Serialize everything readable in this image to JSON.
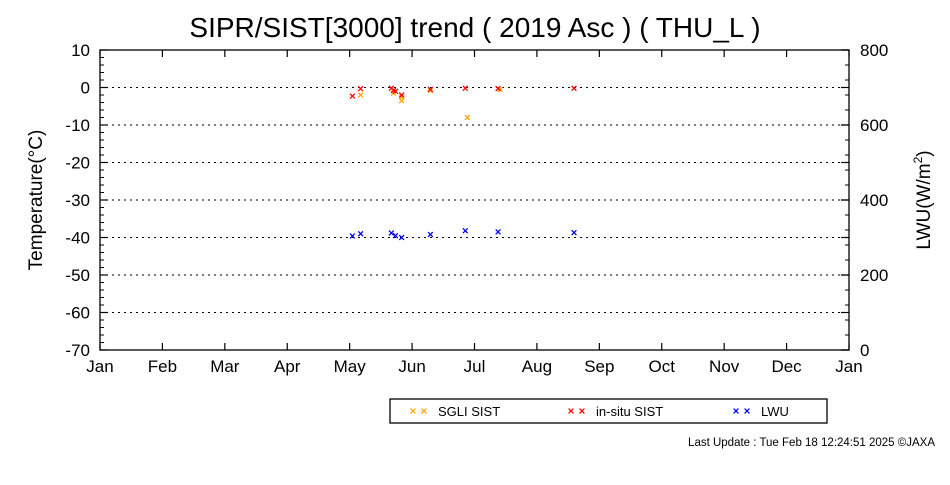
{
  "chart_data": {
    "type": "scatter",
    "title": "SIPR/SIST[3000] trend ( 2019 Asc ) ( THU_L )",
    "ylabel": "Temperature(°C)",
    "y2label_main": "LWU(W/m",
    "y2label_sup": "2",
    "y2label_end": ")",
    "ylim": [
      -70,
      10
    ],
    "yticks": [
      "10",
      "0",
      "-10",
      "-20",
      "-30",
      "-40",
      "-50",
      "-60",
      "-70"
    ],
    "y2lim": [
      0,
      800
    ],
    "y2ticks": [
      "800",
      "600",
      "400",
      "200",
      "0"
    ],
    "xlim": [
      "2019-01-01",
      "2020-01-01"
    ],
    "xticks": [
      "Jan",
      "Feb",
      "Mar",
      "Apr",
      "May",
      "Jun",
      "Jul",
      "Aug",
      "Sep",
      "Oct",
      "Nov",
      "Dec",
      "Jan"
    ],
    "grid": "dotted horizontal",
    "legend_position": "bottom-right",
    "series": [
      {
        "name": "SGLI SIST",
        "color": "#ffa500",
        "axis": "left",
        "marker": "x",
        "points": [
          [
            "2019-05-08",
            -2.0
          ],
          [
            "2019-05-24",
            -1.5
          ],
          [
            "2019-05-28",
            -2.5
          ],
          [
            "2019-05-28",
            -3.5
          ],
          [
            "2019-06-11",
            -0.8
          ],
          [
            "2019-06-29",
            -8.0
          ],
          [
            "2019-07-15",
            -0.5
          ]
        ]
      },
      {
        "name": "in-situ SIST",
        "color": "#ff0000",
        "axis": "left",
        "marker": "x",
        "points": [
          [
            "2019-05-04",
            -2.3
          ],
          [
            "2019-05-08",
            -0.3
          ],
          [
            "2019-05-23",
            -0.2
          ],
          [
            "2019-05-24",
            -0.8
          ],
          [
            "2019-05-25",
            -1.0
          ],
          [
            "2019-05-28",
            -2.0
          ],
          [
            "2019-06-11",
            -0.5
          ],
          [
            "2019-06-28",
            -0.2
          ],
          [
            "2019-07-14",
            -0.3
          ],
          [
            "2019-08-20",
            -0.2
          ]
        ]
      },
      {
        "name": "LWU",
        "color": "#0000ff",
        "axis": "right",
        "marker": "x",
        "points": [
          [
            "2019-05-04",
            304
          ],
          [
            "2019-05-08",
            310
          ],
          [
            "2019-05-23",
            312
          ],
          [
            "2019-05-25",
            305
          ],
          [
            "2019-05-28",
            300
          ],
          [
            "2019-06-11",
            308
          ],
          [
            "2019-06-28",
            318
          ],
          [
            "2019-07-14",
            315
          ],
          [
            "2019-08-20",
            313
          ]
        ]
      }
    ]
  },
  "footer": {
    "last_update": "Last Update : Tue Feb 18 12:24:51 2025  ©JAXA"
  }
}
